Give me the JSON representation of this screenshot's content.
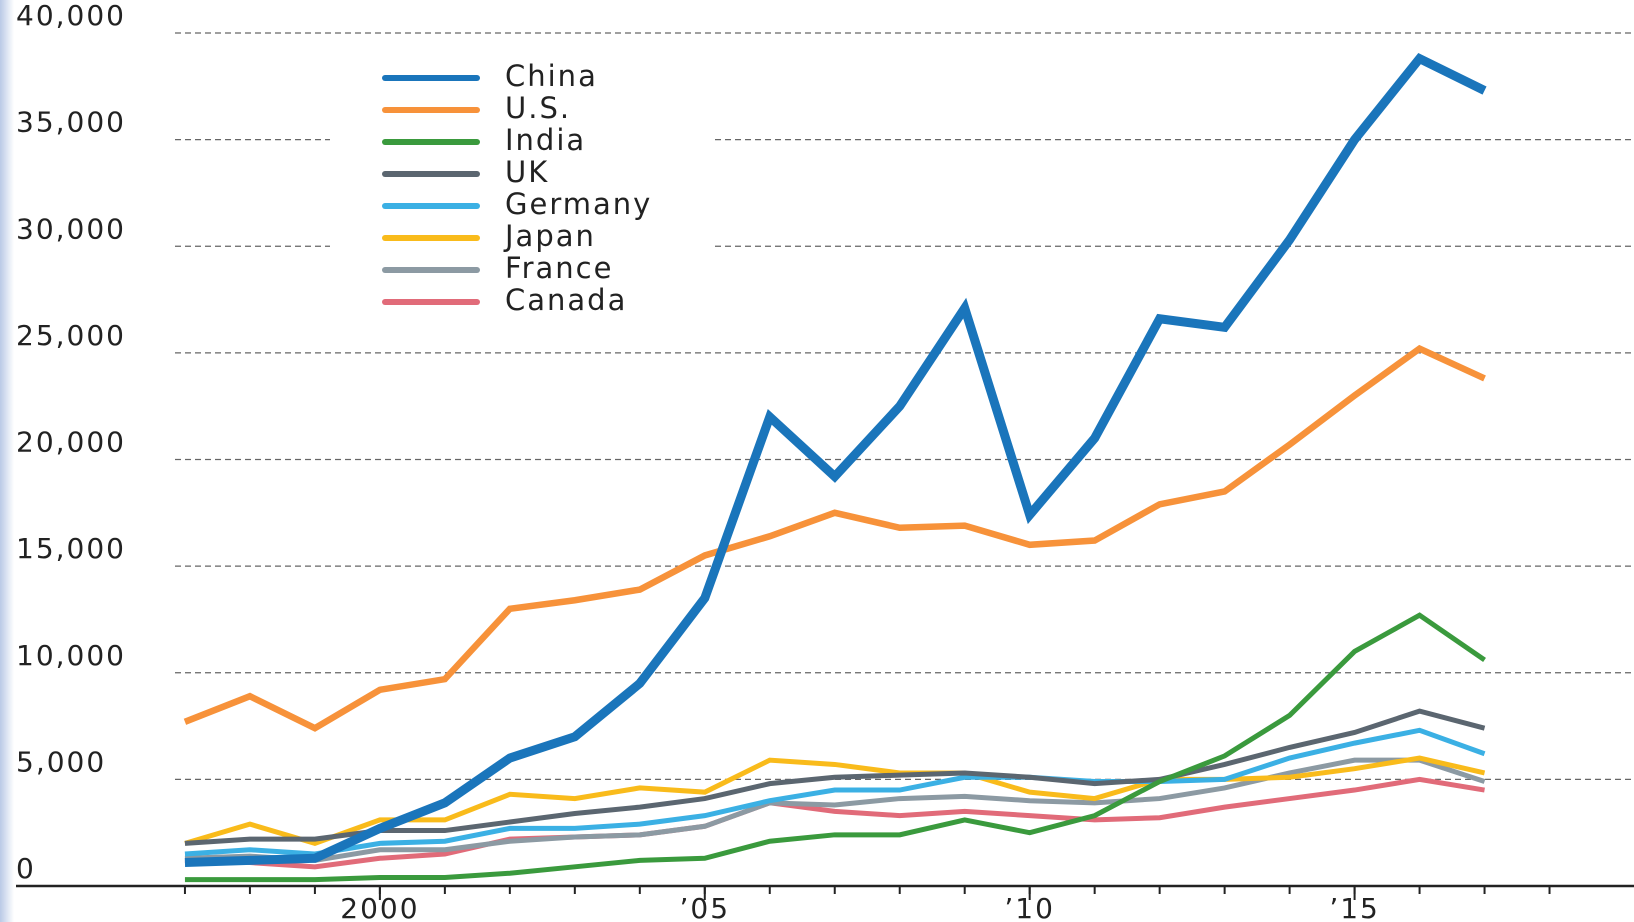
{
  "chart_data": {
    "type": "line",
    "x": [
      1997,
      1998,
      1999,
      2000,
      2001,
      2002,
      2003,
      2004,
      2005,
      2006,
      2007,
      2008,
      2009,
      2010,
      2011,
      2012,
      2013,
      2014,
      2015,
      2016,
      2017
    ],
    "series": [
      {
        "name": "China",
        "color": "#1a75bb",
        "values": [
          1100,
          1200,
          1300,
          2700,
          3900,
          6000,
          7000,
          9500,
          13500,
          22000,
          19200,
          22500,
          27100,
          17400,
          21000,
          26600,
          26200,
          30300,
          35000,
          38800,
          37300
        ]
      },
      {
        "name": "U.S.",
        "color": "#f7923a",
        "values": [
          7700,
          8900,
          7400,
          9200,
          9700,
          13000,
          13400,
          13900,
          15500,
          16400,
          17500,
          16800,
          16900,
          16000,
          16200,
          17900,
          18500,
          20700,
          23000,
          25200,
          23800
        ]
      },
      {
        "name": "India",
        "color": "#3a9a3d",
        "values": [
          300,
          300,
          300,
          400,
          400,
          600,
          900,
          1200,
          1300,
          2100,
          2400,
          2400,
          3100,
          2500,
          3300,
          4900,
          6100,
          8000,
          11000,
          12700,
          10600
        ]
      },
      {
        "name": "UK",
        "color": "#5b6670",
        "values": [
          2000,
          2200,
          2200,
          2600,
          2600,
          3000,
          3400,
          3700,
          4100,
          4800,
          5100,
          5200,
          5300,
          5100,
          4800,
          5000,
          5700,
          6500,
          7200,
          8200,
          7400
        ]
      },
      {
        "name": "Germany",
        "color": "#3bb0e4",
        "values": [
          1500,
          1700,
          1500,
          2000,
          2100,
          2700,
          2700,
          2900,
          3300,
          4000,
          4500,
          4500,
          5100,
          5100,
          4900,
          4900,
          5000,
          6000,
          6700,
          7300,
          6200
        ]
      },
      {
        "name": "Japan",
        "color": "#f9bb1b",
        "values": [
          2000,
          2900,
          2000,
          3100,
          3100,
          4300,
          4100,
          4600,
          4400,
          5900,
          5700,
          5300,
          5300,
          4400,
          4100,
          5000,
          5000,
          5100,
          5500,
          6000,
          5300
        ]
      },
      {
        "name": "France",
        "color": "#8c9aa3",
        "values": [
          1300,
          1400,
          1200,
          1700,
          1700,
          2100,
          2300,
          2400,
          2800,
          3900,
          3800,
          4100,
          4200,
          4000,
          3900,
          4100,
          4600,
          5300,
          5900,
          5900,
          4900
        ]
      },
      {
        "name": "Canada",
        "color": "#e16b79",
        "values": [
          1200,
          1100,
          900,
          1300,
          1500,
          2200,
          2300,
          2400,
          2800,
          3900,
          3500,
          3300,
          3500,
          3300,
          3100,
          3200,
          3700,
          4100,
          4500,
          5000,
          4500
        ]
      }
    ],
    "xlim": [
      1994.4,
      2019.3
    ],
    "xticks": [
      {
        "value": 2000,
        "label": "2000"
      },
      {
        "value": 2005,
        "label": "’05"
      },
      {
        "value": 2010,
        "label": "’10"
      },
      {
        "value": 2015,
        "label": "’15"
      }
    ],
    "xminorticks": [
      1997,
      1998,
      1999,
      2000,
      2001,
      2002,
      2003,
      2004,
      2005,
      2006,
      2007,
      2008,
      2009,
      2010,
      2011,
      2012,
      2013,
      2014,
      2015,
      2016,
      2017,
      2018
    ],
    "ylim": [
      0,
      40000
    ],
    "yticks": [
      0,
      {
        "value": 5000,
        "label": "5,000"
      },
      {
        "value": 10000,
        "label": "10,000"
      },
      {
        "value": 15000,
        "label": "15,000"
      },
      {
        "value": 20000,
        "label": "20,000"
      },
      {
        "value": 25000,
        "label": "25,000"
      },
      {
        "value": 30000,
        "label": "30,000"
      },
      {
        "value": 35000,
        "label": "35,000"
      },
      {
        "value": 40000,
        "label": "40,000"
      }
    ],
    "grid": true,
    "legend": "upper-left"
  }
}
